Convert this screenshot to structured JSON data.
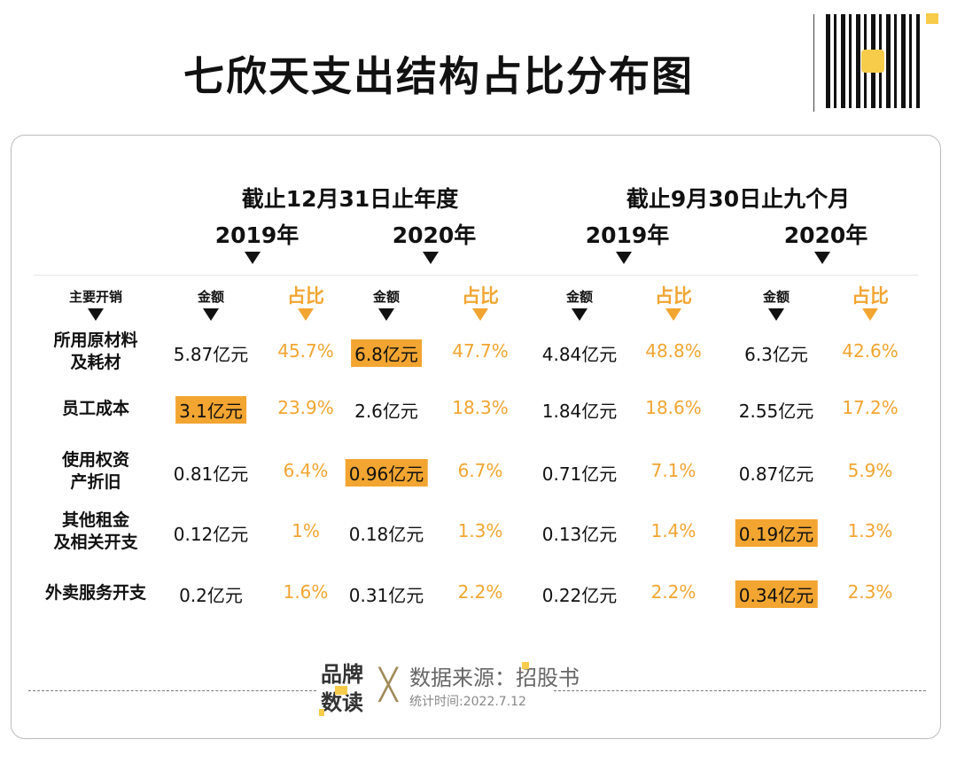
{
  "title": "七欣天支出结构占比分布图",
  "groups": [
    "截止12月31日止年度",
    "截止9月30日止九个月"
  ],
  "years": [
    "2019年",
    "2020年",
    "2019年",
    "2020年"
  ],
  "sub_headers": {
    "category": "主要开销",
    "amount": "金额",
    "ratio": "占比"
  },
  "rows": [
    {
      "label": [
        "所用原材料",
        "及耗材"
      ],
      "cells": [
        [
          "5.87亿元",
          "45.7%"
        ],
        [
          "6.8亿元",
          "47.7%"
        ],
        [
          "4.84亿元",
          "48.8%"
        ],
        [
          "6.3亿元",
          "42.6%"
        ]
      ],
      "highlight": [
        1
      ]
    },
    {
      "label": [
        "员工成本"
      ],
      "cells": [
        [
          "3.1亿元",
          "23.9%"
        ],
        [
          "2.6亿元",
          "18.3%"
        ],
        [
          "1.84亿元",
          "18.6%"
        ],
        [
          "2.55亿元",
          "17.2%"
        ]
      ],
      "highlight": [
        0
      ]
    },
    {
      "label": [
        "使用权资",
        "产折旧"
      ],
      "cells": [
        [
          "0.81亿元",
          "6.4%"
        ],
        [
          "0.96亿元",
          "6.7%"
        ],
        [
          "0.71亿元",
          "7.1%"
        ],
        [
          "0.87亿元",
          "5.9%"
        ]
      ],
      "highlight": [
        1
      ]
    },
    {
      "label": [
        "其他租金",
        "及相关开支"
      ],
      "cells": [
        [
          "0.12亿元",
          "1%"
        ],
        [
          "0.18亿元",
          "1.3%"
        ],
        [
          "0.13亿元",
          "1.4%"
        ],
        [
          "0.19亿元",
          "1.3%"
        ]
      ],
      "highlight": [
        3
      ]
    },
    {
      "label": [
        "外卖服务开支"
      ],
      "cells": [
        [
          "0.2亿元",
          "1.6%"
        ],
        [
          "0.31亿元",
          "2.2%"
        ],
        [
          "0.22亿元",
          "2.2%"
        ],
        [
          "0.34亿元",
          "2.3%"
        ]
      ],
      "highlight": [
        3
      ]
    }
  ],
  "footer": {
    "logo": "品牌数读",
    "source": "数据来源：招股书",
    "date": "统计时间:2022.7.12"
  },
  "colors": {
    "accent": "#f2a531",
    "logo_yellow": "#f7cc4a"
  }
}
